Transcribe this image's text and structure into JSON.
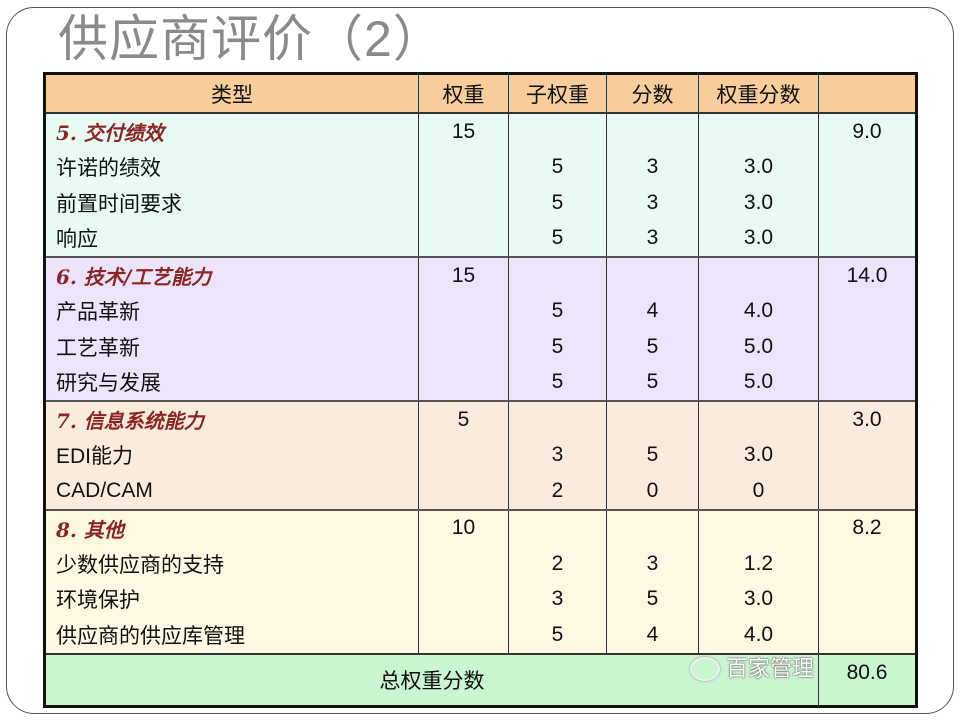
{
  "title": "供应商评价（2）",
  "headers": [
    "类型",
    "权重",
    "子权重",
    "分数",
    "权重分数",
    ""
  ],
  "sections": [
    {
      "title": "5. 交付绩效",
      "weight": "15",
      "total": "9.0",
      "items": [
        {
          "name": "许诺的绩效",
          "sub": "5",
          "score": "3",
          "weighted": "3.0"
        },
        {
          "name": "前置时间要求",
          "sub": "5",
          "score": "3",
          "weighted": "3.0"
        },
        {
          "name": "响应",
          "sub": "5",
          "score": "3",
          "weighted": "3.0"
        }
      ]
    },
    {
      "title": "6. 技术/工艺能力",
      "weight": "15",
      "total": "14.0",
      "items": [
        {
          "name": "产品革新",
          "sub": "5",
          "score": "4",
          "weighted": "4.0"
        },
        {
          "name": "工艺革新",
          "sub": "5",
          "score": "5",
          "weighted": "5.0"
        },
        {
          "name": "研究与发展",
          "sub": "5",
          "score": "5",
          "weighted": "5.0"
        }
      ]
    },
    {
      "title": "7. 信息系统能力",
      "weight": "5",
      "total": "3.0",
      "items": [
        {
          "name": "EDI能力",
          "sub": "3",
          "score": "5",
          "weighted": "3.0"
        },
        {
          "name": "CAD/CAM",
          "sub": "2",
          "score": "0",
          "weighted": "0"
        }
      ]
    },
    {
      "title": "8. 其他",
      "weight": "10",
      "total": "8.2",
      "items": [
        {
          "name": "少数供应商的支持",
          "sub": "2",
          "score": "3",
          "weighted": "1.2"
        },
        {
          "name": "环境保护",
          "sub": "3",
          "score": "5",
          "weighted": "3.0"
        },
        {
          "name": "供应商的供应库管理",
          "sub": "5",
          "score": "4",
          "weighted": "4.0"
        }
      ]
    }
  ],
  "total": {
    "label": "总权重分数",
    "value": "80.6"
  },
  "watermark": "百家管理"
}
